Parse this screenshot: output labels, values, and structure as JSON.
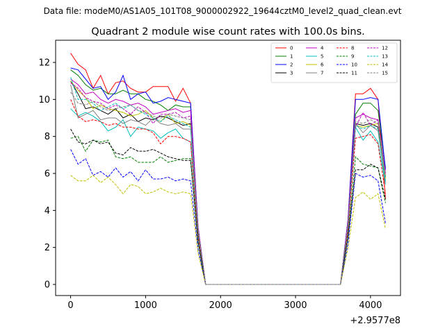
{
  "chart_data": {
    "type": "line",
    "suptitle": "Data file: modeM0/AS1A05_101T08_9000002922_19644cztM0_level2_quad_clean.evt",
    "title": "Quadrant 2 module wise count rates with 100.0s bins.",
    "xlabel": "",
    "ylabel": "",
    "x_offset_label": "+2.9577e8",
    "xlim": [
      -200,
      4400
    ],
    "ylim": [
      -0.6,
      13.2
    ],
    "xticks": [
      0,
      1000,
      2000,
      3000,
      4000
    ],
    "yticks": [
      0,
      2,
      4,
      6,
      8,
      10,
      12
    ],
    "grid": false,
    "legend_position": "top-right",
    "x": [
      0,
      100,
      200,
      300,
      400,
      500,
      600,
      700,
      800,
      900,
      1000,
      1100,
      1200,
      1300,
      1400,
      1500,
      1600,
      1700,
      1800,
      1900,
      2000,
      2100,
      2200,
      2300,
      2400,
      2500,
      2600,
      2700,
      2800,
      2900,
      3000,
      3100,
      3200,
      3300,
      3400,
      3500,
      3600,
      3700,
      3800,
      3900,
      4000,
      4100,
      4200
    ],
    "series": [
      {
        "name": "0",
        "color": "#ff0000",
        "dashed": false,
        "values": [
          12.5,
          11.9,
          11.6,
          10.6,
          11.3,
          10.3,
          10.9,
          11.0,
          10.6,
          10.4,
          10.4,
          10.7,
          10.7,
          10.7,
          9.9,
          10.6,
          9.8,
          3.0,
          0,
          0,
          0,
          0,
          0,
          0,
          0,
          0,
          0,
          0,
          0,
          0,
          0,
          0,
          0,
          0,
          0,
          0,
          0,
          3.5,
          10.3,
          10.3,
          10.6,
          10.0,
          4.6
        ]
      },
      {
        "name": "1",
        "color": "#008000",
        "dashed": false,
        "values": [
          11.6,
          11.3,
          10.8,
          10.5,
          10.6,
          10.3,
          10.3,
          10.5,
          10.3,
          10.3,
          10.0,
          9.9,
          9.7,
          9.4,
          9.7,
          9.6,
          9.6,
          3.0,
          0,
          0,
          0,
          0,
          0,
          0,
          0,
          0,
          0,
          0,
          0,
          0,
          0,
          0,
          0,
          0,
          0,
          0,
          0,
          3.4,
          9.2,
          9.8,
          9.8,
          9.4,
          6.3
        ]
      },
      {
        "name": "2",
        "color": "#0000ff",
        "dashed": false,
        "values": [
          11.7,
          11.6,
          11.1,
          10.6,
          10.7,
          10.0,
          10.4,
          11.3,
          10.0,
          10.3,
          10.4,
          9.8,
          9.9,
          10.1,
          10.0,
          9.9,
          9.8,
          3.1,
          0,
          0,
          0,
          0,
          0,
          0,
          0,
          0,
          0,
          0,
          0,
          0,
          0,
          0,
          0,
          0,
          0,
          0,
          0,
          3.5,
          10.0,
          10.0,
          10.1,
          10.0,
          6.2
        ]
      },
      {
        "name": "3",
        "color": "#000000",
        "dashed": false,
        "values": [
          11.0,
          10.3,
          9.5,
          9.6,
          9.4,
          9.2,
          9.5,
          9.0,
          9.2,
          8.8,
          9.0,
          8.9,
          9.1,
          9.0,
          8.8,
          8.6,
          8.7,
          2.9,
          0,
          0,
          0,
          0,
          0,
          0,
          0,
          0,
          0,
          0,
          0,
          0,
          0,
          0,
          0,
          0,
          0,
          0,
          0,
          3.2,
          8.7,
          8.6,
          8.7,
          8.5,
          5.8
        ]
      },
      {
        "name": "4",
        "color": "#bf00bf",
        "dashed": false,
        "values": [
          11.1,
          10.8,
          10.3,
          10.4,
          10.0,
          9.8,
          10.0,
          9.9,
          9.7,
          9.8,
          9.6,
          9.2,
          9.3,
          9.4,
          9.5,
          9.3,
          9.4,
          3.1,
          0,
          0,
          0,
          0,
          0,
          0,
          0,
          0,
          0,
          0,
          0,
          0,
          0,
          0,
          0,
          0,
          0,
          0,
          0,
          3.4,
          9.0,
          9.2,
          9.0,
          8.9,
          6.0
        ]
      },
      {
        "name": "5",
        "color": "#00bfbf",
        "dashed": false,
        "values": [
          9.5,
          9.1,
          9.3,
          9.1,
          8.8,
          8.3,
          8.5,
          8.9,
          8.0,
          8.5,
          8.4,
          8.3,
          7.9,
          8.2,
          8.4,
          7.9,
          7.7,
          2.6,
          0,
          0,
          0,
          0,
          0,
          0,
          0,
          0,
          0,
          0,
          0,
          0,
          0,
          0,
          0,
          0,
          0,
          0,
          0,
          3.0,
          8.5,
          7.8,
          8.3,
          7.7,
          5.4
        ]
      },
      {
        "name": "6",
        "color": "#bfbf00",
        "dashed": false,
        "values": [
          11.0,
          10.5,
          10.1,
          9.5,
          9.7,
          9.5,
          9.4,
          9.3,
          9.1,
          9.2,
          9.4,
          9.0,
          8.8,
          9.2,
          8.7,
          8.8,
          8.6,
          2.9,
          0,
          0,
          0,
          0,
          0,
          0,
          0,
          0,
          0,
          0,
          0,
          0,
          0,
          0,
          0,
          0,
          0,
          0,
          0,
          3.2,
          8.6,
          8.5,
          8.6,
          8.7,
          5.7
        ]
      },
      {
        "name": "7",
        "color": "#808080",
        "dashed": false,
        "values": [
          10.8,
          9.0,
          9.2,
          9.4,
          8.9,
          9.0,
          9.0,
          8.7,
          8.9,
          8.8,
          8.6,
          9.0,
          8.7,
          8.6,
          8.7,
          8.4,
          8.4,
          2.8,
          0,
          0,
          0,
          0,
          0,
          0,
          0,
          0,
          0,
          0,
          0,
          0,
          0,
          0,
          0,
          0,
          0,
          0,
          0,
          3.1,
          8.7,
          8.2,
          8.6,
          8.3,
          5.5
        ]
      },
      {
        "name": "8",
        "color": "#ff0000",
        "dashed": true,
        "values": [
          10.0,
          9.1,
          8.8,
          8.9,
          8.8,
          8.6,
          8.7,
          8.5,
          8.5,
          8.4,
          8.4,
          8.2,
          7.6,
          8.0,
          8.0,
          7.9,
          7.7,
          2.6,
          0,
          0,
          0,
          0,
          0,
          0,
          0,
          0,
          0,
          0,
          0,
          0,
          0,
          0,
          0,
          0,
          0,
          0,
          0,
          2.9,
          7.9,
          8.0,
          8.1,
          7.6,
          4.9
        ]
      },
      {
        "name": "9",
        "color": "#008000",
        "dashed": true,
        "values": [
          7.9,
          8.0,
          7.2,
          7.8,
          7.7,
          7.8,
          6.9,
          6.8,
          6.9,
          6.6,
          6.6,
          6.6,
          6.9,
          6.6,
          6.7,
          6.8,
          6.8,
          2.3,
          0,
          0,
          0,
          0,
          0,
          0,
          0,
          0,
          0,
          0,
          0,
          0,
          0,
          0,
          0,
          0,
          0,
          0,
          0,
          2.6,
          6.9,
          6.5,
          6.4,
          6.3,
          4.4
        ]
      },
      {
        "name": "10",
        "color": "#0000ff",
        "dashed": true,
        "values": [
          7.3,
          6.5,
          6.8,
          5.9,
          6.1,
          5.8,
          6.3,
          5.8,
          6.1,
          5.6,
          6.2,
          5.7,
          5.7,
          5.8,
          5.6,
          5.7,
          5.6,
          1.9,
          0,
          0,
          0,
          0,
          0,
          0,
          0,
          0,
          0,
          0,
          0,
          0,
          0,
          0,
          0,
          0,
          0,
          0,
          0,
          2.2,
          6.0,
          5.8,
          5.9,
          5.6,
          3.3
        ]
      },
      {
        "name": "11",
        "color": "#000000",
        "dashed": true,
        "values": [
          8.4,
          7.7,
          7.6,
          7.8,
          7.6,
          7.7,
          7.1,
          7.0,
          7.4,
          7.2,
          7.2,
          7.3,
          7.1,
          6.9,
          6.8,
          6.7,
          6.7,
          2.3,
          0,
          0,
          0,
          0,
          0,
          0,
          0,
          0,
          0,
          0,
          0,
          0,
          0,
          0,
          0,
          0,
          0,
          0,
          0,
          2.6,
          6.2,
          6.2,
          6.5,
          6.3,
          4.6
        ]
      },
      {
        "name": "12",
        "color": "#bf00bf",
        "dashed": true,
        "values": [
          10.9,
          10.6,
          10.1,
          9.9,
          9.8,
          9.5,
          9.7,
          9.5,
          9.2,
          9.6,
          9.3,
          8.7,
          9.2,
          9.2,
          9.3,
          9.0,
          9.1,
          3.0,
          0,
          0,
          0,
          0,
          0,
          0,
          0,
          0,
          0,
          0,
          0,
          0,
          0,
          0,
          0,
          0,
          0,
          0,
          0,
          3.3,
          8.5,
          9.3,
          8.6,
          8.9,
          6.0
        ]
      },
      {
        "name": "13",
        "color": "#00bfbf",
        "dashed": true,
        "values": [
          11.2,
          10.0,
          10.0,
          9.8,
          9.4,
          9.6,
          9.8,
          9.5,
          9.7,
          9.4,
          9.2,
          9.0,
          8.8,
          9.1,
          8.9,
          8.7,
          8.5,
          2.9,
          0,
          0,
          0,
          0,
          0,
          0,
          0,
          0,
          0,
          0,
          0,
          0,
          0,
          0,
          0,
          0,
          0,
          0,
          0,
          3.2,
          8.6,
          8.4,
          8.6,
          8.4,
          5.6
        ]
      },
      {
        "name": "14",
        "color": "#bfbf00",
        "dashed": true,
        "values": [
          5.9,
          5.6,
          5.6,
          5.9,
          5.5,
          5.8,
          5.4,
          4.9,
          5.4,
          5.3,
          4.9,
          5.0,
          5.2,
          5.0,
          4.9,
          5.0,
          4.9,
          1.7,
          0,
          0,
          0,
          0,
          0,
          0,
          0,
          0,
          0,
          0,
          0,
          0,
          0,
          0,
          0,
          0,
          0,
          0,
          0,
          2.0,
          4.7,
          5.0,
          4.6,
          4.9,
          3.0
        ]
      },
      {
        "name": "15",
        "color": "#808080",
        "dashed": true,
        "values": [
          10.4,
          9.8,
          9.7,
          9.9,
          9.6,
          9.4,
          9.5,
          9.6,
          9.7,
          9.4,
          9.3,
          9.1,
          9.0,
          9.2,
          9.1,
          9.0,
          8.9,
          3.0,
          0,
          0,
          0,
          0,
          0,
          0,
          0,
          0,
          0,
          0,
          0,
          0,
          0,
          0,
          0,
          0,
          0,
          0,
          0,
          3.3,
          8.8,
          8.7,
          8.9,
          8.7,
          5.9
        ]
      }
    ]
  }
}
